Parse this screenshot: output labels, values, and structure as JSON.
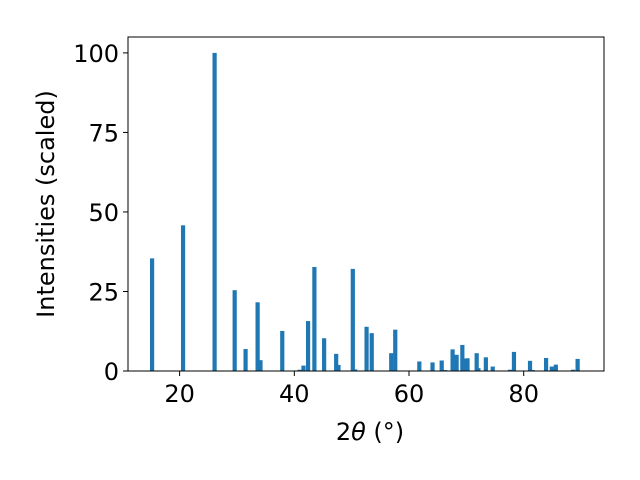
{
  "chart_data": {
    "type": "bar",
    "xlabel_prefix": "2",
    "xlabel_theta": "θ",
    "xlabel_unit": " (°)",
    "ylabel": "Intensities (scaled)",
    "xlim": [
      11,
      94
    ],
    "ylim": [
      0,
      105
    ],
    "xticks": [
      20,
      40,
      60,
      80
    ],
    "yticks": [
      0,
      25,
      50,
      75,
      100
    ],
    "grid": false,
    "bar_color": "#1f77b4",
    "x": [
      15.2,
      20.6,
      26.1,
      29.6,
      31.5,
      33.6,
      34.1,
      37.9,
      40.9,
      41.6,
      42.4,
      43.5,
      45.2,
      47.3,
      47.7,
      50.2,
      50.6,
      52.6,
      53.5,
      56.9,
      57.6,
      61.8,
      64.1,
      65.7,
      66.3,
      67.6,
      68.3,
      69.3,
      69.7,
      70.2,
      71.8,
      72.1,
      73.4,
      74.6,
      77.6,
      78.3,
      81.1,
      81.6,
      83.9,
      84.9,
      85.6,
      88.6,
      89.4
    ],
    "values": [
      35.4,
      45.8,
      100,
      25.4,
      6.9,
      21.6,
      3.4,
      12.6,
      0.4,
      1.7,
      15.7,
      32.7,
      10.3,
      5.4,
      1.9,
      32.1,
      0.5,
      13.9,
      11.9,
      5.6,
      13.0,
      3.0,
      2.7,
      3.3,
      0.3,
      6.8,
      5.1,
      8.2,
      3.9,
      4.0,
      5.6,
      0.9,
      4.3,
      1.4,
      0.4,
      6.0,
      3.2,
      0.3,
      4.1,
      1.4,
      2.0,
      0.4,
      3.8
    ]
  }
}
